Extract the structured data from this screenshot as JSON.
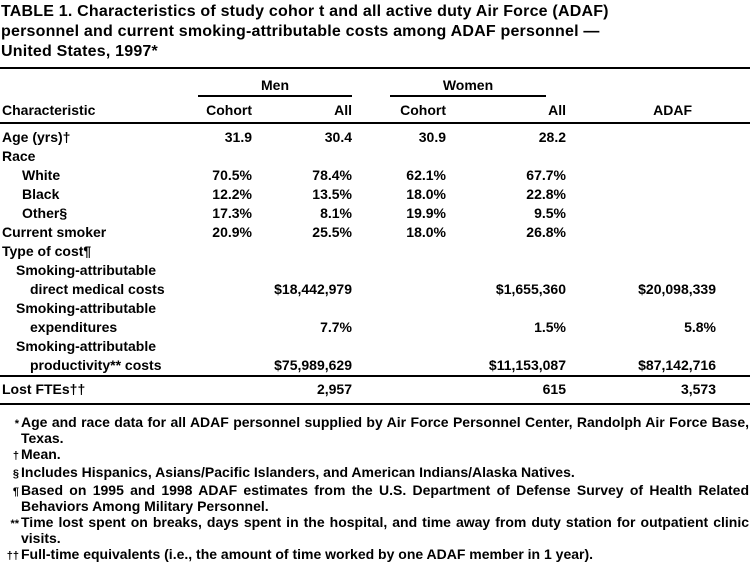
{
  "title": {
    "line1": "TABLE 1. Characteristics of study cohor t and all active duty Air Force (ADAF)",
    "line2": "personnel and current smoking-attributable costs among ADAF personnel —",
    "line3": "United States, 1997*"
  },
  "table": {
    "headers": {
      "characteristic": "Characteristic",
      "men": "Men",
      "women": "Women",
      "men_cohort": "Cohort",
      "men_all": "All",
      "women_cohort": "Cohort",
      "women_all": "All",
      "adaf": "ADAF"
    },
    "rows": [
      {
        "label": "Age (yrs)†",
        "indent": 0,
        "values": [
          "31.9",
          "30.4",
          "30.9",
          "28.2",
          ""
        ]
      },
      {
        "label": "Race",
        "indent": 0,
        "values": [
          "",
          "",
          "",
          "",
          ""
        ]
      },
      {
        "label": "White",
        "indent": 1,
        "values": [
          "70.5%",
          "78.4%",
          "62.1%",
          "67.7%",
          ""
        ]
      },
      {
        "label": "Black",
        "indent": 1,
        "values": [
          "12.2%",
          "13.5%",
          "18.0%",
          "22.8%",
          ""
        ]
      },
      {
        "label": "Other§",
        "indent": 1,
        "values": [
          "17.3%",
          "8.1%",
          "19.9%",
          "9.5%",
          ""
        ]
      },
      {
        "label": "Current smoker",
        "indent": 0,
        "values": [
          "20.9%",
          "25.5%",
          "18.0%",
          "26.8%",
          ""
        ]
      },
      {
        "label": "Type of cost¶",
        "indent": 0,
        "values": [
          "",
          "",
          "",
          "",
          ""
        ]
      },
      {
        "label": "Smoking-attributable",
        "label2": "direct medical costs",
        "indent": 1,
        "values": [
          "",
          "$18,442,979",
          "",
          "$1,655,360",
          "$20,098,339"
        ]
      },
      {
        "label": "Smoking-attributable",
        "label2": "expenditures",
        "indent": 1,
        "values": [
          "",
          "7.7%",
          "",
          "1.5%",
          "5.8%"
        ]
      },
      {
        "label": "Smoking-attributable",
        "label2": "productivity** costs",
        "indent": 1,
        "values": [
          "",
          "$75,989,629",
          "",
          "$11,153,087",
          "$87,142,716"
        ]
      },
      {
        "label": "Lost FTEs††",
        "indent": 0,
        "rule_above": true,
        "values": [
          "",
          "2,957",
          "",
          "615",
          "3,573"
        ]
      }
    ]
  },
  "footnotes": [
    {
      "marker": "*",
      "text": "Age and race data for all ADAF personnel supplied by Air Force Personnel Center, Randolph Air Force Base, Texas."
    },
    {
      "marker": "†",
      "text": "Mean."
    },
    {
      "marker": "§",
      "text": "Includes Hispanics, Asians/Pacific Islanders, and American Indians/Alaska Natives."
    },
    {
      "marker": "¶",
      "text": "Based on 1995 and 1998 ADAF estimates from the U.S. Department of Defense Survey of Health Related Behaviors Among Military Personnel."
    },
    {
      "marker": "**",
      "text": "Time lost spent on breaks, days spent in the hospital, and time away from duty station for outpatient clinic visits."
    },
    {
      "marker": "††",
      "text": "Full-time equivalents (i.e., the amount of time worked by one ADAF member in 1 year)."
    }
  ]
}
